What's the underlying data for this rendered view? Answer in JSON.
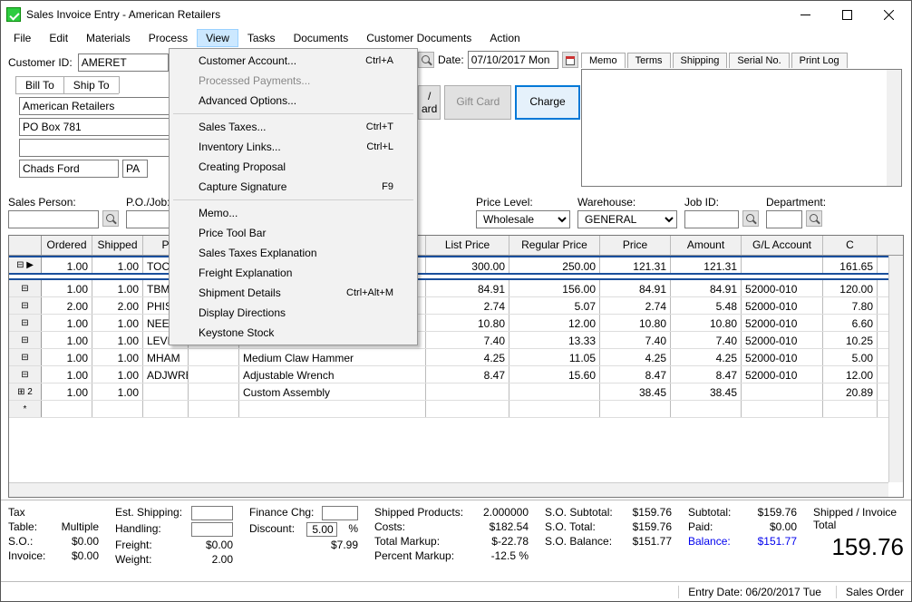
{
  "window": {
    "title": "Sales Invoice Entry - American Retailers"
  },
  "menubar": [
    "File",
    "Edit",
    "Materials",
    "Process",
    "View",
    "Tasks",
    "Documents",
    "Customer Documents",
    "Action"
  ],
  "menubar_active_index": 4,
  "dropdown": [
    {
      "label": "Customer Account...",
      "short": "Ctrl+A"
    },
    {
      "label": "Processed Payments...",
      "disabled": true
    },
    {
      "label": "Advanced Options..."
    },
    {
      "sep": true
    },
    {
      "label": "Sales Taxes...",
      "short": "Ctrl+T"
    },
    {
      "label": "Inventory Links...",
      "short": "Ctrl+L"
    },
    {
      "label": "Creating Proposal"
    },
    {
      "label": "Capture Signature",
      "short": "F9"
    },
    {
      "sep": true
    },
    {
      "label": "Memo..."
    },
    {
      "label": "Price Tool Bar"
    },
    {
      "label": "Sales Taxes Explanation"
    },
    {
      "label": "Freight Explanation"
    },
    {
      "label": "Shipment Details",
      "short": "Ctrl+Alt+M"
    },
    {
      "label": "Display Directions"
    },
    {
      "label": "Keystone Stock"
    }
  ],
  "customer": {
    "id_label": "Customer ID:",
    "id": "AMERET",
    "billto_tab": "Bill To",
    "shipto_tab": "Ship To",
    "name": "American Retailers",
    "addr1": "PO Box 781",
    "addr2": "",
    "city": "Chads Ford",
    "state": "PA",
    "zip": ""
  },
  "date": {
    "label": "Date:",
    "value": "07/10/2017 Mon"
  },
  "charge": {
    "ard_btn": "ard",
    "giftcard": "Gift Card",
    "charge": "Charge",
    "slash": "/"
  },
  "memo_tabs": [
    "Memo",
    "Terms",
    "Shipping",
    "Serial No.",
    "Print Log"
  ],
  "row2": {
    "salesperson": "Sales Person:",
    "pojob": "P.O./Job:",
    "pricelevel": "Price Level:",
    "pricelevel_val": "Wholesale",
    "warehouse": "Warehouse:",
    "warehouse_val": "GENERAL",
    "jobid": "Job ID:",
    "department": "Department:"
  },
  "grid": {
    "headers": [
      "",
      "Ordered",
      "Shipped",
      "P",
      "",
      "cription",
      "List Price",
      "Regular Price",
      "Price",
      "Amount",
      "G/L Account",
      "C"
    ],
    "widths": [
      36,
      56,
      56,
      50,
      56,
      206,
      92,
      100,
      78,
      78,
      90,
      60
    ],
    "rows": [
      {
        "head": "▶",
        "cells": [
          "1.00",
          "1.00",
          "TOO",
          "",
          "x & complete set",
          "300.00",
          "250.00",
          "121.31",
          "121.31",
          "",
          "161.65"
        ],
        "sel": true,
        "extra": true
      },
      {
        "head": "",
        "cells": [
          "1.00",
          "1.00",
          "TBM",
          "",
          "x",
          "84.91",
          "156.00",
          "84.91",
          "84.91",
          "52000-010",
          "120.00"
        ]
      },
      {
        "head": "",
        "cells": [
          "2.00",
          "2.00",
          "PHIS",
          "",
          "wdriver",
          "2.74",
          "5.07",
          "2.74",
          "5.48",
          "52000-010",
          "7.80"
        ]
      },
      {
        "head": "",
        "cells": [
          "1.00",
          "1.00",
          "NEE",
          "",
          "Needle Nose Pliers",
          "10.80",
          "12.00",
          "10.80",
          "10.80",
          "52000-010",
          "6.60"
        ]
      },
      {
        "head": "",
        "cells": [
          "1.00",
          "1.00",
          "LEVEL3",
          "2.00",
          "2.00  3' Level",
          "7.40",
          "13.33",
          "7.40",
          "7.40",
          "52000-010",
          "10.25"
        ]
      },
      {
        "head": "",
        "cells": [
          "1.00",
          "1.00",
          "MHAM",
          "",
          "Medium Claw Hammer",
          "4.25",
          "11.05",
          "4.25",
          "4.25",
          "52000-010",
          "5.00"
        ]
      },
      {
        "head": "",
        "cells": [
          "1.00",
          "1.00",
          "ADJWRE",
          "",
          "Adjustable Wrench",
          "8.47",
          "15.60",
          "8.47",
          "8.47",
          "52000-010",
          "12.00"
        ]
      },
      {
        "head": "2",
        "plus": true,
        "cells": [
          "1.00",
          "1.00",
          "",
          "",
          "Custom Assembly",
          "",
          "",
          "38.45",
          "38.45",
          "",
          "20.89"
        ]
      },
      {
        "head": "*",
        "cells": [
          "",
          "",
          "",
          "",
          "",
          "",
          "",
          "",
          "",
          "",
          ""
        ]
      }
    ]
  },
  "footer": {
    "tax_label": "Tax",
    "table_label": "Table:",
    "table_val": "Multiple",
    "so_label": "S.O.:",
    "so_val": "$0.00",
    "invoice_label": "Invoice:",
    "invoice_val": "$0.00",
    "est_ship": "Est. Shipping:",
    "handling": "Handling:",
    "freight": "Freight:",
    "freight_val": "$0.00",
    "weight": "Weight:",
    "weight_val": "2.00",
    "finance": "Finance Chg:",
    "discount": "Discount:",
    "discount_val": "5.00",
    "disc_amt": "$7.99",
    "pct": "%",
    "shipped_prod": "Shipped Products:",
    "shipped_prod_val": "2.000000",
    "costs": "Costs:",
    "costs_val": "$182.54",
    "total_markup": "Total Markup:",
    "total_markup_val": "$-22.78",
    "pct_markup": "Percent Markup:",
    "pct_markup_val": "-12.5 %",
    "so_sub": "S.O. Subtotal:",
    "so_sub_val": "$159.76",
    "so_tot": "S.O. Total:",
    "so_tot_val": "$159.76",
    "so_bal": "S.O. Balance:",
    "so_bal_val": "$151.77",
    "subtotal": "Subtotal:",
    "subtotal_val": "$159.76",
    "paid": "Paid:",
    "paid_val": "$0.00",
    "balance": "Balance:",
    "balance_val": "$151.77",
    "ship_total_label": "Shipped / Invoice Total",
    "ship_total": "159.76"
  },
  "status": {
    "entry": "Entry Date: 06/20/2017 Tue",
    "mode": "Sales Order"
  }
}
